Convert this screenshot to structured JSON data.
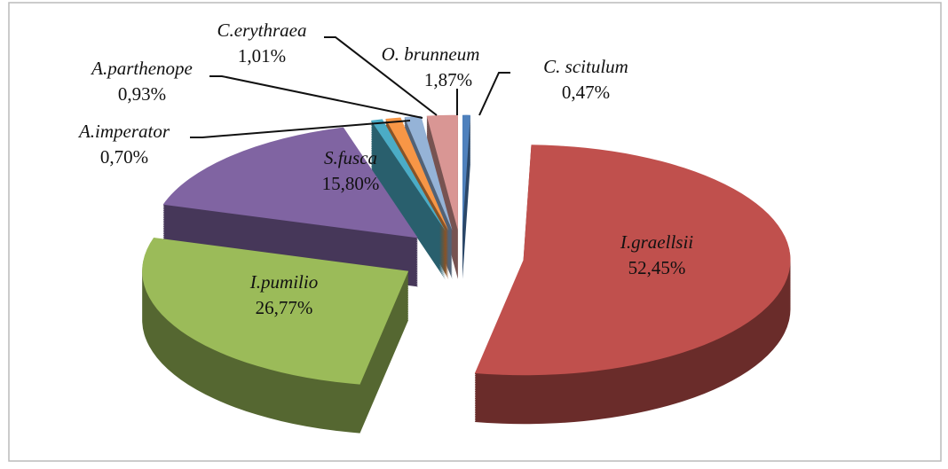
{
  "chart_data": {
    "type": "pie3d",
    "categories": [
      "C. scitulum",
      "I.graellsii",
      "I.pumilio",
      "S.fusca",
      "A.imperator",
      "A.parthenope",
      "C.erythraea",
      "O. brunneum"
    ],
    "values": [
      0.47,
      52.45,
      26.77,
      15.8,
      0.7,
      0.93,
      1.01,
      1.87
    ],
    "value_labels": [
      "0,47%",
      "52,45%",
      "26,77%",
      "15,80%",
      "0,70%",
      "0,93%",
      "1,01%",
      "1,87%"
    ],
    "colors": [
      "#4f81bd",
      "#c0504d",
      "#9bbb59",
      "#8064a2",
      "#4bacc6",
      "#f79646",
      "#95b3d7",
      "#d99694"
    ]
  }
}
